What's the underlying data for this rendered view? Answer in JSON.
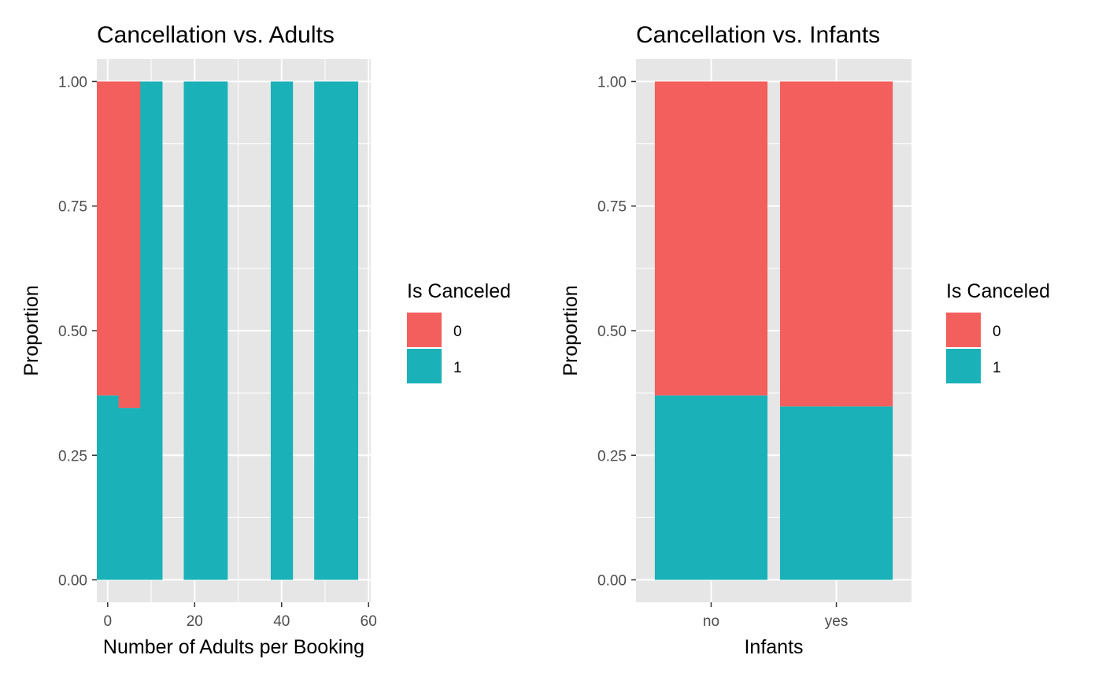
{
  "chart_data": [
    {
      "type": "bar",
      "stacking": "fill",
      "title": "Cancellation vs. Adults",
      "xlabel": "Number of Adults per Booking",
      "ylabel": "Proportion",
      "xlim": [
        -2.5,
        60.5
      ],
      "ylim": [
        -0.045,
        1.045
      ],
      "bin_width": 5,
      "x_ticks": [
        "0",
        "20",
        "40",
        "60"
      ],
      "x_tick_values": [
        0,
        20,
        40,
        60
      ],
      "y_ticks": [
        "0.00",
        "0.25",
        "0.50",
        "0.75",
        "1.00"
      ],
      "y_tick_values": [
        0,
        0.25,
        0.5,
        0.75,
        1
      ],
      "bins": [
        {
          "x": 0,
          "canceled_1": 0.37,
          "canceled_0": 0.63
        },
        {
          "x": 5,
          "canceled_1": 0.345,
          "canceled_0": 0.655
        },
        {
          "x": 10,
          "canceled_1": 1.0,
          "canceled_0": 0.0
        },
        {
          "x": 20,
          "canceled_1": 1.0,
          "canceled_0": 0.0
        },
        {
          "x": 25,
          "canceled_1": 1.0,
          "canceled_0": 0.0
        },
        {
          "x": 40,
          "canceled_1": 1.0,
          "canceled_0": 0.0
        },
        {
          "x": 50,
          "canceled_1": 1.0,
          "canceled_0": 0.0
        },
        {
          "x": 55,
          "canceled_1": 1.0,
          "canceled_0": 0.0
        }
      ],
      "grid": true,
      "legend": {
        "title": "Is Canceled",
        "position": "right"
      }
    },
    {
      "type": "bar",
      "stacking": "fill",
      "title": "Cancellation vs. Infants",
      "xlabel": "Infants",
      "ylabel": "Proportion",
      "categories": [
        "no",
        "yes"
      ],
      "ylim": [
        -0.045,
        1.045
      ],
      "y_ticks": [
        "0.00",
        "0.25",
        "0.50",
        "0.75",
        "1.00"
      ],
      "y_tick_values": [
        0,
        0.25,
        0.5,
        0.75,
        1
      ],
      "series": [
        {
          "name": "1",
          "values": [
            0.37,
            0.348
          ]
        },
        {
          "name": "0",
          "values": [
            0.63,
            0.652
          ]
        }
      ],
      "grid": true,
      "legend": {
        "title": "Is Canceled",
        "position": "right"
      }
    }
  ],
  "legend_items": [
    {
      "label": "0",
      "color": "#F8766D"
    },
    {
      "label": "1",
      "color": "#00BFC4"
    }
  ],
  "colors": {
    "canceled_0": "#F25F5C",
    "canceled_1": "#1AB2B8",
    "panel": "#E6E6E6",
    "grid": "#FFFFFF"
  }
}
